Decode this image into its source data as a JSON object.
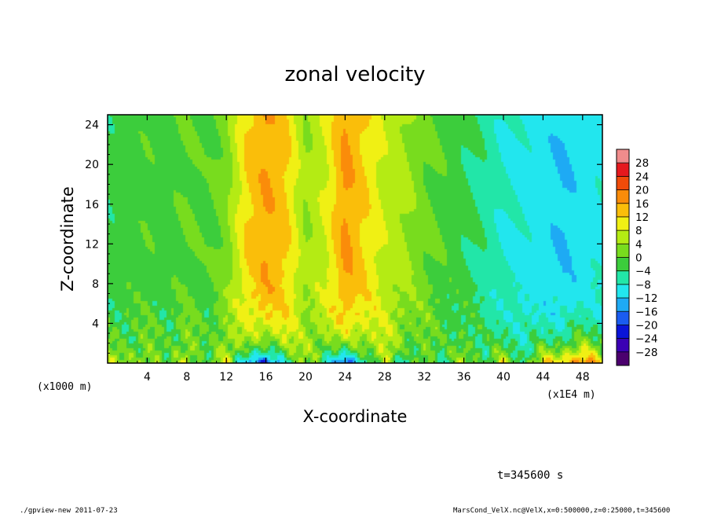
{
  "chart_data": {
    "type": "heatmap",
    "title": "zonal velocity",
    "xlabel": "X-coordinate",
    "ylabel": "Z-coordinate",
    "x_unit_label": "(x1E4 m)",
    "y_unit_label": "(x1000 m)",
    "xlim": [
      0,
      50
    ],
    "ylim": [
      0,
      25
    ],
    "x_ticks": [
      4,
      8,
      12,
      16,
      20,
      24,
      28,
      32,
      36,
      40,
      44,
      48
    ],
    "y_ticks": [
      4,
      8,
      12,
      16,
      20,
      24
    ],
    "colorbar": {
      "labels": [
        "28",
        "24",
        "20",
        "16",
        "12",
        "8",
        "4",
        "0",
        "−4",
        "−8",
        "−12",
        "−16",
        "−20",
        "−24",
        "−28"
      ],
      "levels": [
        28,
        24,
        20,
        16,
        12,
        8,
        4,
        0,
        -4,
        -8,
        -12,
        -16,
        -20,
        -24,
        -28
      ]
    },
    "field_profile": {
      "x": [
        0,
        2,
        4,
        6,
        8,
        10,
        12,
        14,
        16,
        18,
        20,
        22,
        24,
        26,
        28,
        30,
        32,
        34,
        36,
        38,
        40,
        42,
        44,
        46,
        48,
        50
      ],
      "upper_value": [
        -3,
        -2,
        -1,
        -2,
        0,
        -1,
        2,
        12,
        16,
        13,
        4,
        8,
        17,
        12,
        7,
        5,
        1,
        -1,
        -3,
        -5,
        -8,
        -9,
        -10,
        -12,
        -10,
        -9
      ],
      "bottom_value": [
        6,
        2,
        4,
        -2,
        8,
        -6,
        10,
        -14,
        -22,
        -6,
        4,
        -6,
        -22,
        -8,
        8,
        -10,
        4,
        -6,
        6,
        -4,
        8,
        -4,
        10,
        14,
        22,
        10
      ]
    },
    "grid": false,
    "legend": "right"
  },
  "annotations": {
    "time_label": "t=345600 s",
    "footer_left": "./gpview-new   2011-07-23",
    "footer_right": "MarsCond_VelX.nc@VelX,x=0:500000,z=0:25000,t=345600"
  },
  "colors": {
    "palette": [
      "#4b006e",
      "#3b00b4",
      "#0a14d8",
      "#1a5cf0",
      "#1eaaf4",
      "#22e6ee",
      "#22e6a8",
      "#3ccd3c",
      "#78dc1e",
      "#b4eb14",
      "#f0f014",
      "#fabe0a",
      "#fa8c0a",
      "#f04b0a",
      "#e6191e",
      "#f08c8c"
    ]
  }
}
